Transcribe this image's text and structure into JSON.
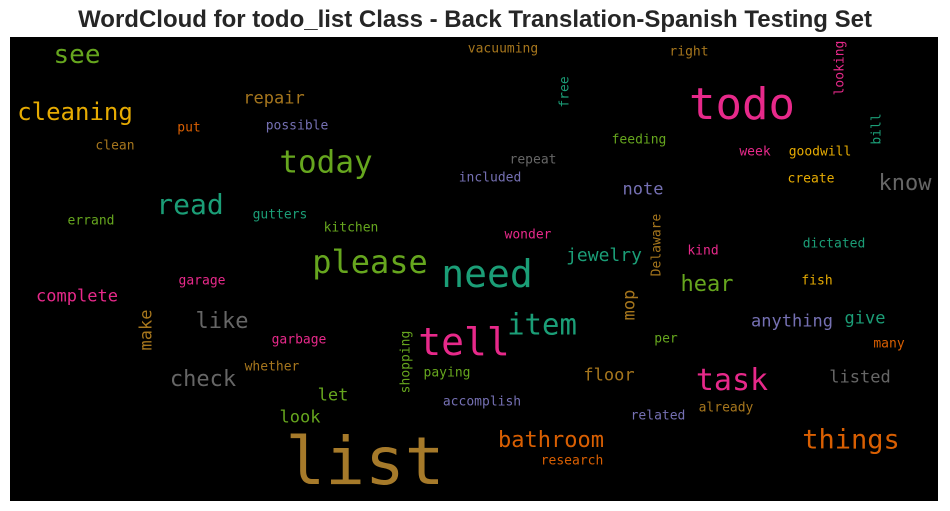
{
  "title": "WordCloud for todo_list Class - Back Translation-Spanish Testing Set",
  "words": [
    {
      "text": "list",
      "color": "#a67a2a"
    },
    {
      "text": "todo",
      "color": "#e7298a"
    },
    {
      "text": "need",
      "color": "#1b9e77"
    },
    {
      "text": "tell",
      "color": "#e7298a"
    },
    {
      "text": "please",
      "color": "#66a61e"
    },
    {
      "text": "today",
      "color": "#66a61e"
    },
    {
      "text": "item",
      "color": "#1b9e77"
    },
    {
      "text": "task",
      "color": "#e7298a"
    },
    {
      "text": "things",
      "color": "#d95f02"
    },
    {
      "text": "read",
      "color": "#1b9e77"
    },
    {
      "text": "see",
      "color": "#66a61e"
    },
    {
      "text": "cleaning",
      "color": "#e6ab02"
    },
    {
      "text": "bathroom",
      "color": "#d95f02"
    },
    {
      "text": "know",
      "color": "#666666"
    },
    {
      "text": "check",
      "color": "#666666"
    },
    {
      "text": "like",
      "color": "#666666"
    },
    {
      "text": "hear",
      "color": "#66a61e"
    },
    {
      "text": "jewelry",
      "color": "#1b9e77"
    },
    {
      "text": "complete",
      "color": "#e7298a"
    },
    {
      "text": "anything",
      "color": "#7570b3"
    },
    {
      "text": "repair",
      "color": "#a6761d"
    },
    {
      "text": "note",
      "color": "#7570b3"
    },
    {
      "text": "give",
      "color": "#1b9e77"
    },
    {
      "text": "floor",
      "color": "#a6761d"
    },
    {
      "text": "listed",
      "color": "#666666"
    },
    {
      "text": "look",
      "color": "#66a61e"
    },
    {
      "text": "let",
      "color": "#66a61e"
    },
    {
      "text": "make",
      "color": "#a6761d"
    },
    {
      "text": "mop",
      "color": "#a6761d"
    },
    {
      "text": "vacuuming",
      "color": "#a6761d"
    },
    {
      "text": "right",
      "color": "#a6761d"
    },
    {
      "text": "put",
      "color": "#d95f02"
    },
    {
      "text": "possible",
      "color": "#7570b3"
    },
    {
      "text": "clean",
      "color": "#a6761d"
    },
    {
      "text": "feeding",
      "color": "#66a61e"
    },
    {
      "text": "week",
      "color": "#e7298a"
    },
    {
      "text": "goodwill",
      "color": "#e6ab02"
    },
    {
      "text": "repeat",
      "color": "#666666"
    },
    {
      "text": "included",
      "color": "#7570b3"
    },
    {
      "text": "create",
      "color": "#e6ab02"
    },
    {
      "text": "errand",
      "color": "#66a61e"
    },
    {
      "text": "gutters",
      "color": "#1b9e77"
    },
    {
      "text": "kitchen",
      "color": "#66a61e"
    },
    {
      "text": "wonder",
      "color": "#e7298a"
    },
    {
      "text": "kind",
      "color": "#e7298a"
    },
    {
      "text": "dictated",
      "color": "#1b9e77"
    },
    {
      "text": "garage",
      "color": "#e7298a"
    },
    {
      "text": "fish",
      "color": "#e6ab02"
    },
    {
      "text": "garbage",
      "color": "#e7298a"
    },
    {
      "text": "per",
      "color": "#66a61e"
    },
    {
      "text": "many",
      "color": "#d95f02"
    },
    {
      "text": "whether",
      "color": "#a6761d"
    },
    {
      "text": "paying",
      "color": "#66a61e"
    },
    {
      "text": "accomplish",
      "color": "#7570b3"
    },
    {
      "text": "related",
      "color": "#7570b3"
    },
    {
      "text": "already",
      "color": "#a6761d"
    },
    {
      "text": "research",
      "color": "#d95f02"
    },
    {
      "text": "free",
      "color": "#1b9e77"
    },
    {
      "text": "looking",
      "color": "#e7298a"
    },
    {
      "text": "bill",
      "color": "#1b9e77"
    },
    {
      "text": "Delaware",
      "color": "#a6761d"
    },
    {
      "text": "shopping",
      "color": "#66a61e"
    }
  ]
}
